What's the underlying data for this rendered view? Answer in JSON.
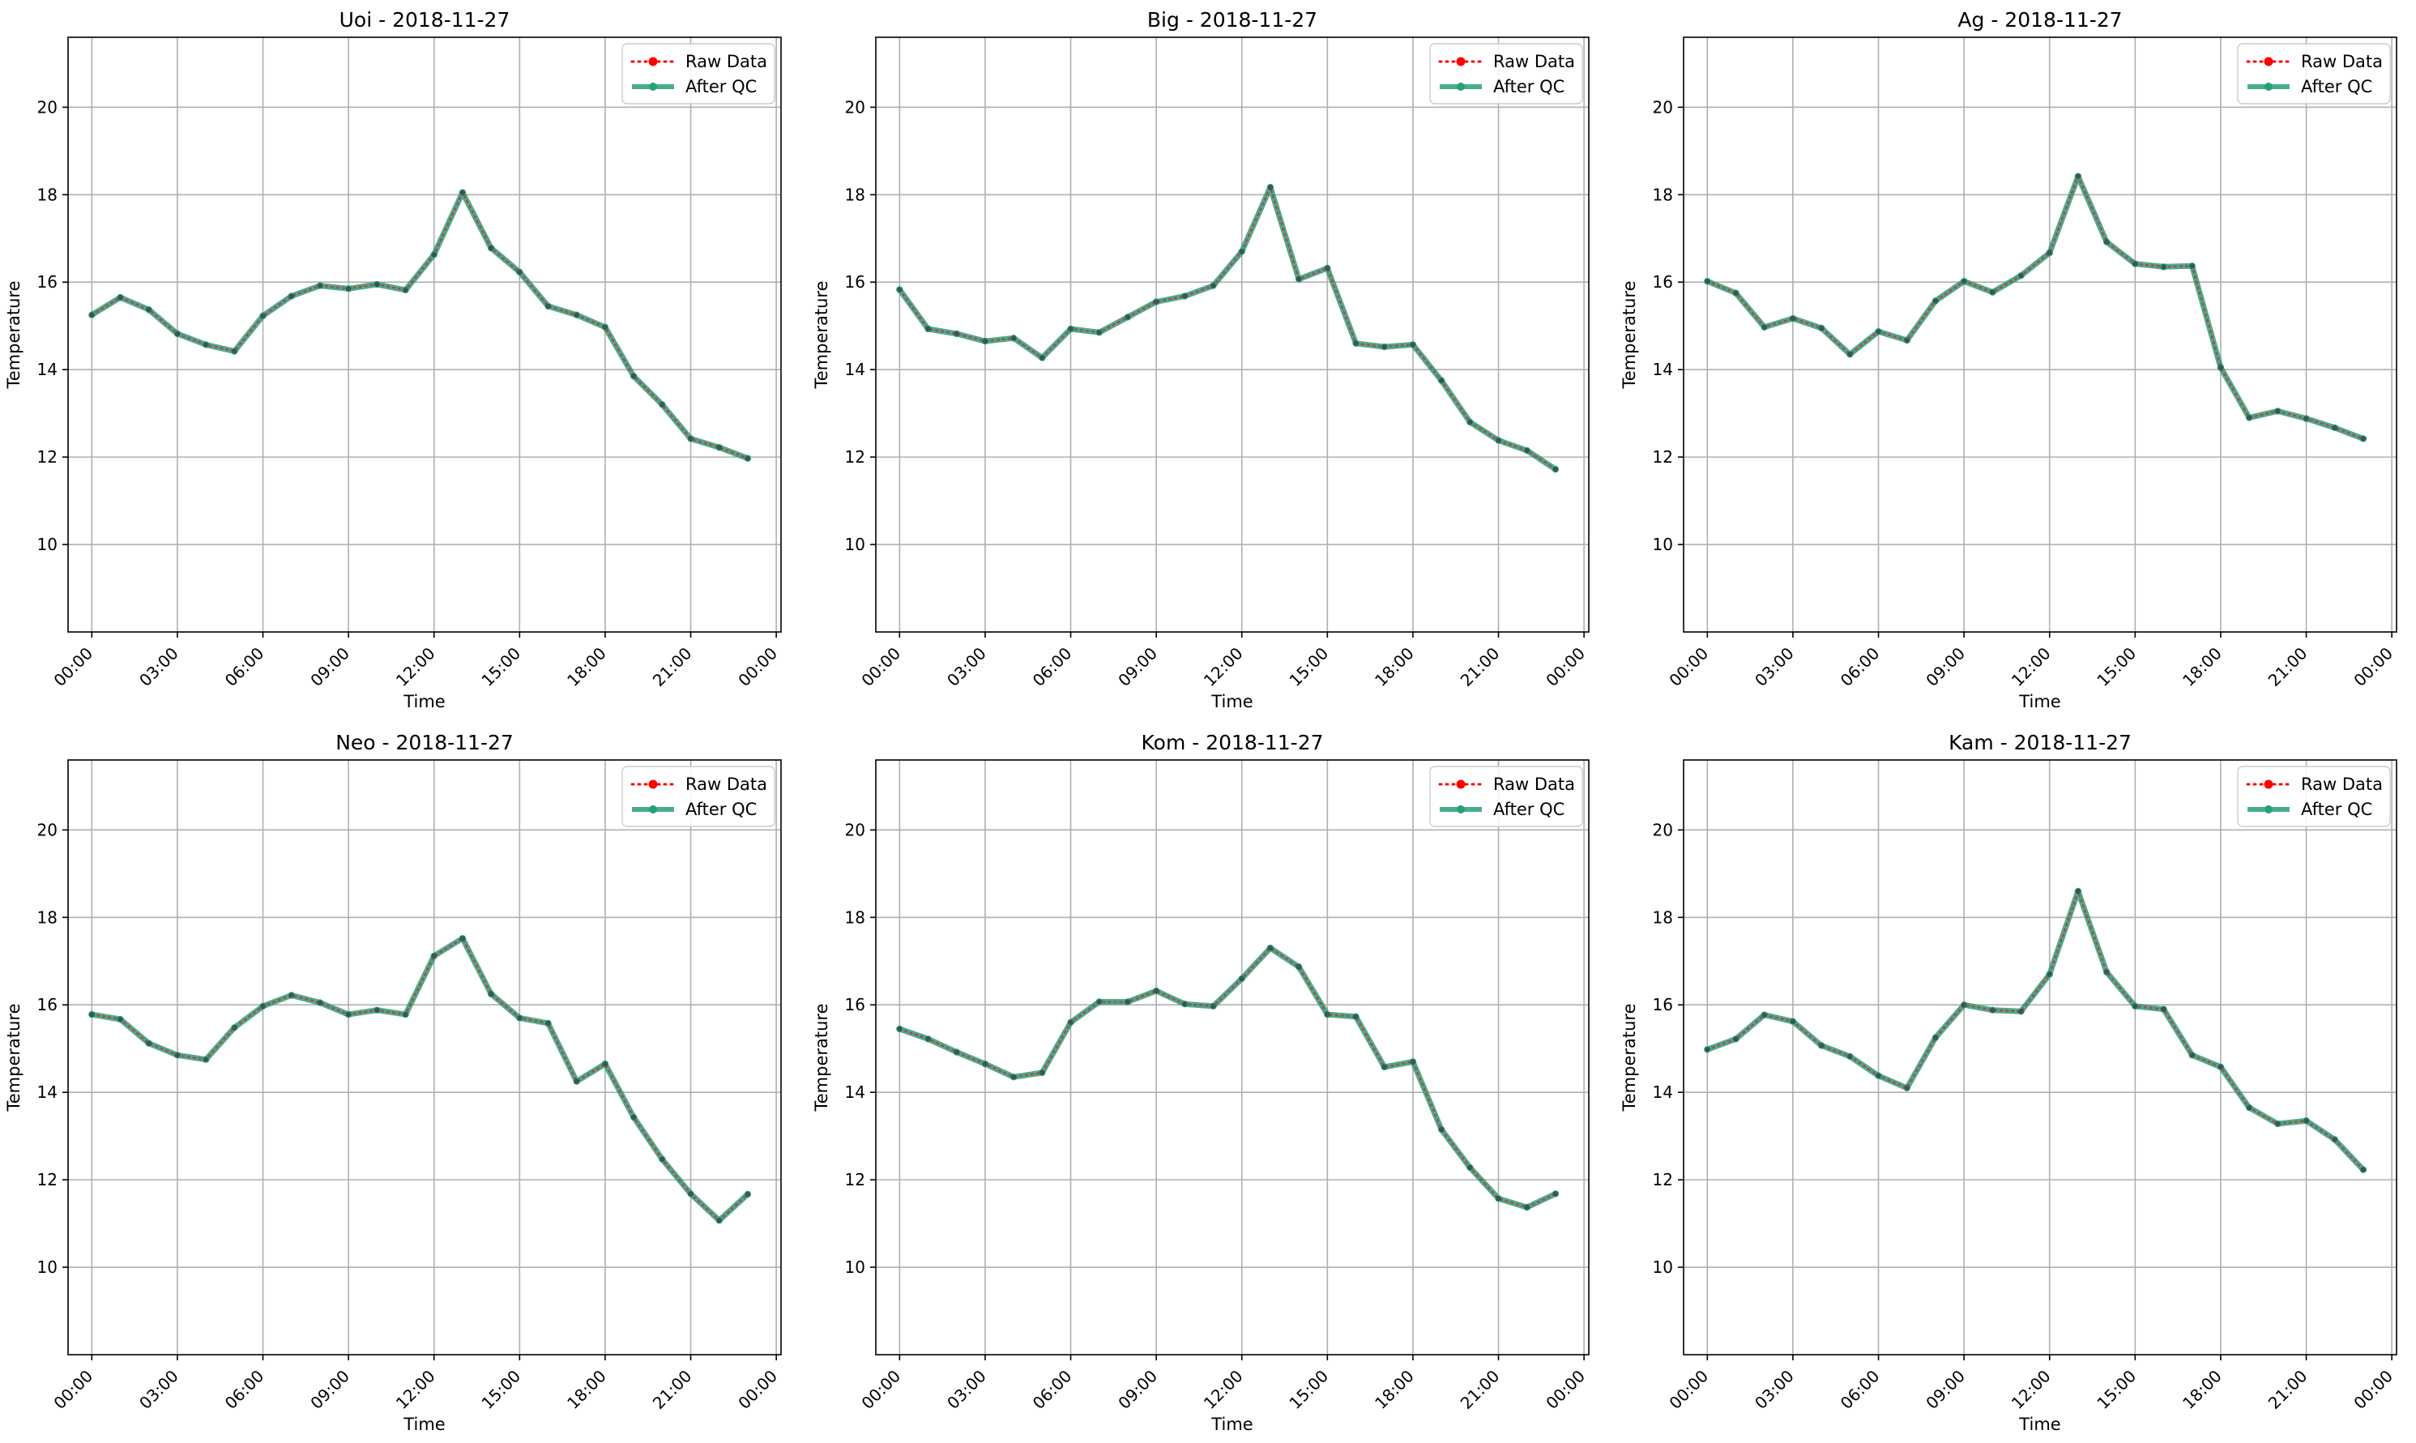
{
  "chart_data": [
    {
      "type": "line",
      "title": "Uoi - 2018-11-27",
      "xlabel": "Time",
      "ylabel": "Temperature",
      "xlim": [
        "-00:50",
        "24:10"
      ],
      "ylim": [
        8.0,
        21.6
      ],
      "x_ticks": [
        "00:00",
        "03:00",
        "06:00",
        "09:00",
        "12:00",
        "15:00",
        "18:00",
        "21:00",
        "00:00"
      ],
      "y_ticks": [
        "10",
        "12",
        "14",
        "16",
        "18",
        "20"
      ],
      "grid": true,
      "legend_position": "top-right",
      "x": [
        "00:00",
        "01:00",
        "02:00",
        "03:00",
        "04:00",
        "05:00",
        "06:00",
        "07:00",
        "08:00",
        "09:00",
        "10:00",
        "11:00",
        "12:00",
        "13:00",
        "14:00",
        "15:00",
        "16:00",
        "17:00",
        "18:00",
        "19:00",
        "20:00",
        "21:00",
        "22:00",
        "23:00"
      ],
      "series": [
        {
          "name": "Raw Data",
          "color": "#ff0000",
          "values": [
            15.25,
            15.65,
            15.37,
            14.82,
            14.57,
            14.42,
            15.23,
            15.68,
            15.92,
            15.85,
            15.95,
            15.82,
            16.63,
            18.05,
            16.78,
            16.23,
            15.45,
            15.25,
            14.97,
            13.85,
            13.2,
            12.42,
            12.22,
            11.97
          ]
        },
        {
          "name": "After QC",
          "color": "#2a9d7a",
          "values": [
            15.25,
            15.65,
            15.37,
            14.82,
            14.57,
            14.42,
            15.23,
            15.68,
            15.92,
            15.85,
            15.95,
            15.82,
            16.63,
            18.05,
            16.78,
            16.23,
            15.45,
            15.25,
            14.97,
            13.85,
            13.2,
            12.42,
            12.22,
            11.97
          ]
        }
      ]
    },
    {
      "type": "line",
      "title": "Big - 2018-11-27",
      "xlabel": "Time",
      "ylabel": "Temperature",
      "xlim": [
        "-00:50",
        "24:10"
      ],
      "ylim": [
        8.0,
        21.6
      ],
      "x_ticks": [
        "00:00",
        "03:00",
        "06:00",
        "09:00",
        "12:00",
        "15:00",
        "18:00",
        "21:00",
        "00:00"
      ],
      "y_ticks": [
        "10",
        "12",
        "14",
        "16",
        "18",
        "20"
      ],
      "grid": true,
      "legend_position": "top-right",
      "x": [
        "00:00",
        "01:00",
        "02:00",
        "03:00",
        "04:00",
        "05:00",
        "06:00",
        "07:00",
        "08:00",
        "09:00",
        "10:00",
        "11:00",
        "12:00",
        "13:00",
        "14:00",
        "15:00",
        "16:00",
        "17:00",
        "18:00",
        "19:00",
        "20:00",
        "21:00",
        "22:00",
        "23:00"
      ],
      "series": [
        {
          "name": "Raw Data",
          "color": "#ff0000",
          "values": [
            15.83,
            14.93,
            14.82,
            14.65,
            14.72,
            14.27,
            14.93,
            14.85,
            15.2,
            15.55,
            15.68,
            15.92,
            16.7,
            18.17,
            16.07,
            16.32,
            14.6,
            14.52,
            14.57,
            13.75,
            12.8,
            12.38,
            12.15,
            11.72
          ]
        },
        {
          "name": "After QC",
          "color": "#2a9d7a",
          "values": [
            15.83,
            14.93,
            14.82,
            14.65,
            14.72,
            14.27,
            14.93,
            14.85,
            15.2,
            15.55,
            15.68,
            15.92,
            16.7,
            18.17,
            16.07,
            16.32,
            14.6,
            14.52,
            14.57,
            13.75,
            12.8,
            12.38,
            12.15,
            11.72
          ]
        }
      ]
    },
    {
      "type": "line",
      "title": "Ag - 2018-11-27",
      "xlabel": "Time",
      "ylabel": "Temperature",
      "xlim": [
        "-00:50",
        "24:10"
      ],
      "ylim": [
        8.0,
        21.6
      ],
      "x_ticks": [
        "00:00",
        "03:00",
        "06:00",
        "09:00",
        "12:00",
        "15:00",
        "18:00",
        "21:00",
        "00:00"
      ],
      "y_ticks": [
        "10",
        "12",
        "14",
        "16",
        "18",
        "20"
      ],
      "grid": true,
      "legend_position": "top-right",
      "x": [
        "00:00",
        "01:00",
        "02:00",
        "03:00",
        "04:00",
        "05:00",
        "06:00",
        "07:00",
        "08:00",
        "09:00",
        "10:00",
        "11:00",
        "12:00",
        "13:00",
        "14:00",
        "15:00",
        "16:00",
        "17:00",
        "18:00",
        "19:00",
        "20:00",
        "21:00",
        "22:00",
        "23:00"
      ],
      "series": [
        {
          "name": "Raw Data",
          "color": "#ff0000",
          "values": [
            16.02,
            15.75,
            14.97,
            15.17,
            14.95,
            14.35,
            14.87,
            14.67,
            15.57,
            16.02,
            15.77,
            16.15,
            16.67,
            18.42,
            16.92,
            16.42,
            16.35,
            16.37,
            14.05,
            12.9,
            13.05,
            12.88,
            12.67,
            12.42
          ]
        },
        {
          "name": "After QC",
          "color": "#2a9d7a",
          "values": [
            16.02,
            15.75,
            14.97,
            15.17,
            14.95,
            14.35,
            14.87,
            14.67,
            15.57,
            16.02,
            15.77,
            16.15,
            16.67,
            18.42,
            16.92,
            16.42,
            16.35,
            16.37,
            14.05,
            12.9,
            13.05,
            12.88,
            12.67,
            12.42
          ]
        }
      ]
    },
    {
      "type": "line",
      "title": "Neo - 2018-11-27",
      "xlabel": "Time",
      "ylabel": "Temperature",
      "xlim": [
        "-00:50",
        "24:10"
      ],
      "ylim": [
        8.0,
        21.6
      ],
      "x_ticks": [
        "00:00",
        "03:00",
        "06:00",
        "09:00",
        "12:00",
        "15:00",
        "18:00",
        "21:00",
        "00:00"
      ],
      "y_ticks": [
        "10",
        "12",
        "14",
        "16",
        "18",
        "20"
      ],
      "grid": true,
      "legend_position": "top-right",
      "x": [
        "00:00",
        "01:00",
        "02:00",
        "03:00",
        "04:00",
        "05:00",
        "06:00",
        "07:00",
        "08:00",
        "09:00",
        "10:00",
        "11:00",
        "12:00",
        "13:00",
        "14:00",
        "15:00",
        "16:00",
        "17:00",
        "18:00",
        "19:00",
        "20:00",
        "21:00",
        "22:00",
        "23:00"
      ],
      "series": [
        {
          "name": "Raw Data",
          "color": "#ff0000",
          "values": [
            15.78,
            15.67,
            15.12,
            14.85,
            14.75,
            15.48,
            15.97,
            16.22,
            16.05,
            15.78,
            15.88,
            15.78,
            17.12,
            17.52,
            16.25,
            15.7,
            15.58,
            14.25,
            14.65,
            13.43,
            12.47,
            11.68,
            11.07,
            11.67
          ]
        },
        {
          "name": "After QC",
          "color": "#2a9d7a",
          "values": [
            15.78,
            15.67,
            15.12,
            14.85,
            14.75,
            15.48,
            15.97,
            16.22,
            16.05,
            15.78,
            15.88,
            15.78,
            17.12,
            17.52,
            16.25,
            15.7,
            15.58,
            14.25,
            14.65,
            13.43,
            12.47,
            11.68,
            11.07,
            11.67
          ]
        }
      ]
    },
    {
      "type": "line",
      "title": "Kom - 2018-11-27",
      "xlabel": "Time",
      "ylabel": "Temperature",
      "xlim": [
        "-00:50",
        "24:10"
      ],
      "ylim": [
        8.0,
        21.6
      ],
      "x_ticks": [
        "00:00",
        "03:00",
        "06:00",
        "09:00",
        "12:00",
        "15:00",
        "18:00",
        "21:00",
        "00:00"
      ],
      "y_ticks": [
        "10",
        "12",
        "14",
        "16",
        "18",
        "20"
      ],
      "grid": true,
      "legend_position": "top-right",
      "x": [
        "00:00",
        "01:00",
        "02:00",
        "03:00",
        "04:00",
        "05:00",
        "06:00",
        "07:00",
        "08:00",
        "09:00",
        "10:00",
        "11:00",
        "12:00",
        "13:00",
        "14:00",
        "15:00",
        "16:00",
        "17:00",
        "18:00",
        "19:00",
        "20:00",
        "21:00",
        "22:00",
        "23:00"
      ],
      "series": [
        {
          "name": "Raw Data",
          "color": "#ff0000",
          "values": [
            15.45,
            15.22,
            14.92,
            14.65,
            14.35,
            14.45,
            15.6,
            16.07,
            16.07,
            16.32,
            16.02,
            15.97,
            16.6,
            17.3,
            16.87,
            15.78,
            15.73,
            14.58,
            14.7,
            13.15,
            12.28,
            11.57,
            11.37,
            11.68
          ]
        },
        {
          "name": "After QC",
          "color": "#2a9d7a",
          "values": [
            15.45,
            15.22,
            14.92,
            14.65,
            14.35,
            14.45,
            15.6,
            16.07,
            16.07,
            16.32,
            16.02,
            15.97,
            16.6,
            17.3,
            16.87,
            15.78,
            15.73,
            14.58,
            14.7,
            13.15,
            12.28,
            11.57,
            11.37,
            11.68
          ]
        }
      ]
    },
    {
      "type": "line",
      "title": "Kam - 2018-11-27",
      "xlabel": "Time",
      "ylabel": "Temperature",
      "xlim": [
        "-00:50",
        "24:10"
      ],
      "ylim": [
        8.0,
        21.6
      ],
      "x_ticks": [
        "00:00",
        "03:00",
        "06:00",
        "09:00",
        "12:00",
        "15:00",
        "18:00",
        "21:00",
        "00:00"
      ],
      "y_ticks": [
        "10",
        "12",
        "14",
        "16",
        "18",
        "20"
      ],
      "grid": true,
      "legend_position": "top-right",
      "x": [
        "00:00",
        "01:00",
        "02:00",
        "03:00",
        "04:00",
        "05:00",
        "06:00",
        "07:00",
        "08:00",
        "09:00",
        "10:00",
        "11:00",
        "12:00",
        "13:00",
        "14:00",
        "15:00",
        "16:00",
        "17:00",
        "18:00",
        "19:00",
        "20:00",
        "21:00",
        "22:00",
        "23:00"
      ],
      "series": [
        {
          "name": "Raw Data",
          "color": "#ff0000",
          "values": [
            14.98,
            15.22,
            15.77,
            15.62,
            15.07,
            14.82,
            14.38,
            14.1,
            15.25,
            16.0,
            15.88,
            15.85,
            16.7,
            18.6,
            16.75,
            15.97,
            15.9,
            14.85,
            14.58,
            13.65,
            13.28,
            13.35,
            12.92,
            12.23
          ]
        },
        {
          "name": "After QC",
          "color": "#2a9d7a",
          "values": [
            14.98,
            15.22,
            15.77,
            15.62,
            15.07,
            14.82,
            14.38,
            14.1,
            15.25,
            16.0,
            15.88,
            15.85,
            16.7,
            18.6,
            16.75,
            15.97,
            15.9,
            14.85,
            14.58,
            13.65,
            13.28,
            13.35,
            12.92,
            12.23
          ]
        }
      ]
    }
  ]
}
